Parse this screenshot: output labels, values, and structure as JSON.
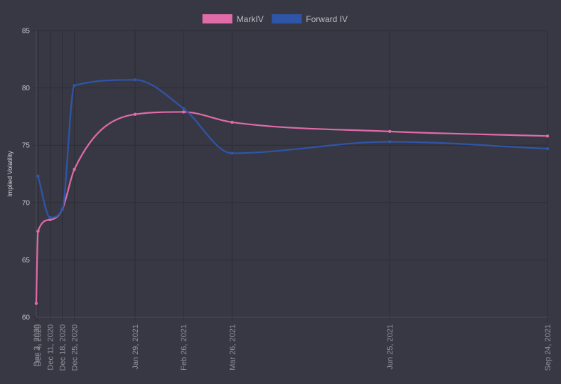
{
  "chart_data": {
    "type": "line",
    "xlabel": "",
    "ylabel": "Implied Volatility",
    "ylim": [
      60,
      85
    ],
    "yticks": [
      60,
      65,
      70,
      75,
      80,
      85
    ],
    "grid": true,
    "legend_position": "top-center",
    "x": [
      "Dec 3, 2020",
      "Dec 4, 2020",
      "Dec 11, 2020",
      "Dec 18, 2020",
      "Dec 25, 2020",
      "Jan 29, 2021",
      "Feb 26, 2021",
      "Mar 26, 2021",
      "Jun 25, 2021",
      "Sep 24, 2021"
    ],
    "x_dates": [
      "2020-12-03",
      "2020-12-04",
      "2020-12-11",
      "2020-12-18",
      "2020-12-25",
      "2021-01-29",
      "2021-02-26",
      "2021-03-26",
      "2021-06-25",
      "2021-09-24"
    ],
    "series": [
      {
        "name": "MarkIV",
        "color": "#e06ba8",
        "values": [
          61.2,
          67.5,
          68.5,
          69.4,
          72.9,
          77.7,
          77.9,
          77.0,
          76.2,
          75.8
        ]
      },
      {
        "name": "Forward IV",
        "color": "#2f55a8",
        "values": [
          null,
          72.3,
          68.7,
          69.4,
          80.2,
          80.7,
          78.2,
          74.3,
          75.3,
          74.7
        ]
      }
    ]
  }
}
